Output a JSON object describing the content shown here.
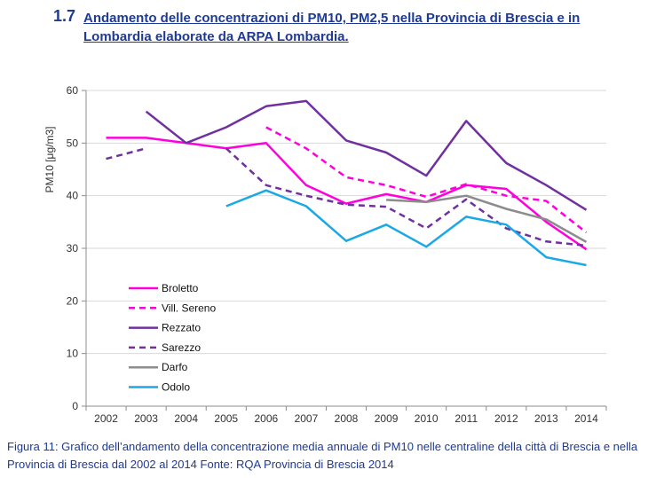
{
  "heading": {
    "number": "1.7",
    "title": "Andamento delle concentrazioni di PM10, PM2,5 nella Provincia di Brescia e in Lombardia elaborate da ARPA Lombardia."
  },
  "caption": "Figura 11: Grafico dell’andamento della concentrazione media annuale di PM10 nelle centraline della città di Brescia e nella Provincia di Brescia dal 2002 al 2014 Fonte: RQA Provincia di Brescia 2014",
  "chart_data": {
    "type": "line",
    "title": "",
    "xlabel": "",
    "ylabel": "PM10 [μg/m3]",
    "ylim": [
      0,
      60
    ],
    "yticks": [
      0,
      10,
      20,
      30,
      40,
      50,
      60
    ],
    "categories": [
      "2002",
      "2003",
      "2004",
      "2005",
      "2006",
      "2007",
      "2008",
      "2009",
      "2010",
      "2011",
      "2012",
      "2013",
      "2014"
    ],
    "grid": true,
    "legend_position": "bottom-left",
    "series": [
      {
        "name": "Broletto",
        "color": "#ff00dd",
        "dashed": false,
        "values": [
          51,
          51,
          50,
          49,
          50,
          42,
          38.5,
          40.3,
          38.8,
          42,
          41.3,
          35,
          29.8
        ]
      },
      {
        "name": "Vill. Sereno",
        "color": "#ff00dd",
        "dashed": true,
        "values": [
          null,
          null,
          null,
          null,
          53,
          49,
          43.5,
          42,
          39.8,
          42.2,
          40,
          39,
          33
        ]
      },
      {
        "name": "Rezzato",
        "color": "#7030a0",
        "dashed": false,
        "values": [
          null,
          56,
          50,
          53,
          57,
          58,
          50.5,
          48.2,
          43.8,
          54.2,
          46.2,
          42,
          37.3
        ]
      },
      {
        "name": "Sarezzo",
        "color": "#7030a0",
        "dashed": true,
        "values": [
          47,
          49,
          null,
          49,
          42,
          40,
          38.3,
          37.9,
          33.8,
          39.3,
          33.8,
          31.3,
          30.5
        ]
      },
      {
        "name": "Darfo",
        "color": "#8c8c8c",
        "dashed": false,
        "values": [
          null,
          null,
          null,
          null,
          null,
          null,
          null,
          39.2,
          38.8,
          40,
          37.5,
          35.5,
          31.2
        ]
      },
      {
        "name": "Odolo",
        "color": "#1aa8e6",
        "dashed": false,
        "values": [
          null,
          null,
          null,
          38,
          41,
          38,
          31.4,
          34.5,
          30.3,
          36,
          34.5,
          28.3,
          26.8
        ]
      }
    ]
  }
}
